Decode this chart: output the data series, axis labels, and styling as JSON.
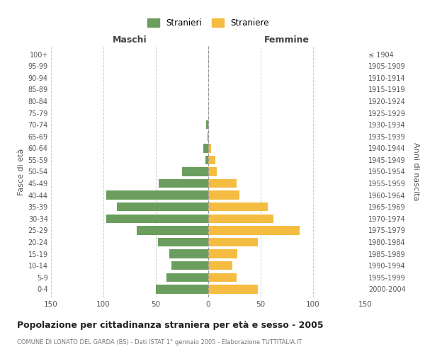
{
  "age_groups": [
    "100+",
    "95-99",
    "90-94",
    "85-89",
    "80-84",
    "75-79",
    "70-74",
    "65-69",
    "60-64",
    "55-59",
    "50-54",
    "45-49",
    "40-44",
    "35-39",
    "30-34",
    "25-29",
    "20-24",
    "15-19",
    "10-14",
    "5-9",
    "0-4"
  ],
  "birth_years": [
    "≤ 1904",
    "1905-1909",
    "1910-1914",
    "1915-1919",
    "1920-1924",
    "1925-1929",
    "1930-1934",
    "1935-1939",
    "1940-1944",
    "1945-1949",
    "1950-1954",
    "1955-1959",
    "1960-1964",
    "1965-1969",
    "1970-1974",
    "1975-1979",
    "1980-1984",
    "1985-1989",
    "1990-1994",
    "1995-1999",
    "2000-2004"
  ],
  "males": [
    0,
    0,
    0,
    0,
    0,
    0,
    2,
    1,
    5,
    3,
    25,
    47,
    97,
    87,
    97,
    68,
    48,
    37,
    35,
    40,
    50
  ],
  "females": [
    0,
    0,
    0,
    0,
    0,
    0,
    0,
    0,
    3,
    7,
    8,
    27,
    30,
    57,
    62,
    87,
    47,
    28,
    23,
    27,
    47
  ],
  "male_color": "#6b9e5e",
  "female_color": "#f5bc42",
  "grid_color": "#cccccc",
  "title": "Popolazione per cittadinanza straniera per età e sesso - 2005",
  "subtitle": "COMUNE DI LONATO DEL GARDA (BS) - Dati ISTAT 1° gennaio 2005 - Elaborazione TUTTITALIA.IT",
  "xlabel_left": "Maschi",
  "xlabel_right": "Femmine",
  "ylabel_left": "Fasce di età",
  "ylabel_right": "Anni di nascita",
  "legend_males": "Stranieri",
  "legend_females": "Straniere",
  "xlim": 150
}
